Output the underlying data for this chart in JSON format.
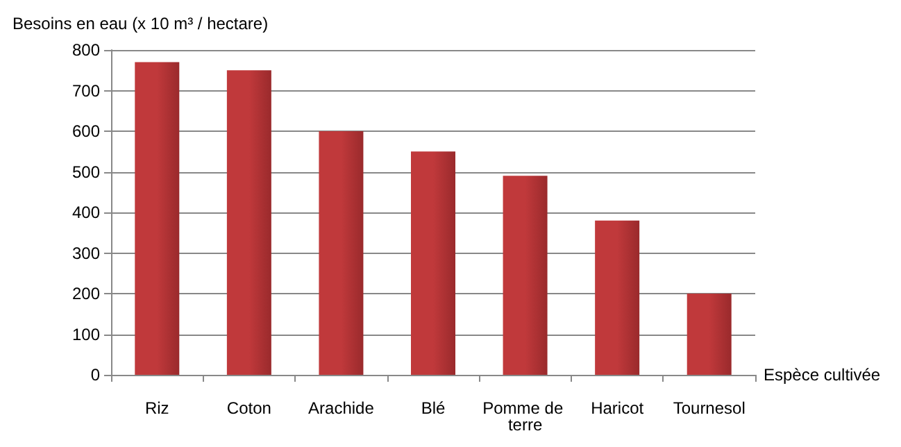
{
  "chart_data": {
    "type": "bar",
    "ylabel": "Besoins en eau (x 10 m³ / hectare)",
    "xlabel": "Espèce cultivée",
    "categories": [
      "Riz",
      "Coton",
      "Arachide",
      "Blé",
      "Pomme de terre",
      "Haricot",
      "Tournesol"
    ],
    "values": [
      770,
      750,
      600,
      550,
      490,
      380,
      200
    ],
    "color": "#c0393b",
    "ylim": [
      0,
      800
    ],
    "yticks": [
      0,
      100,
      200,
      300,
      400,
      500,
      600,
      700,
      800
    ],
    "grid": "y"
  }
}
